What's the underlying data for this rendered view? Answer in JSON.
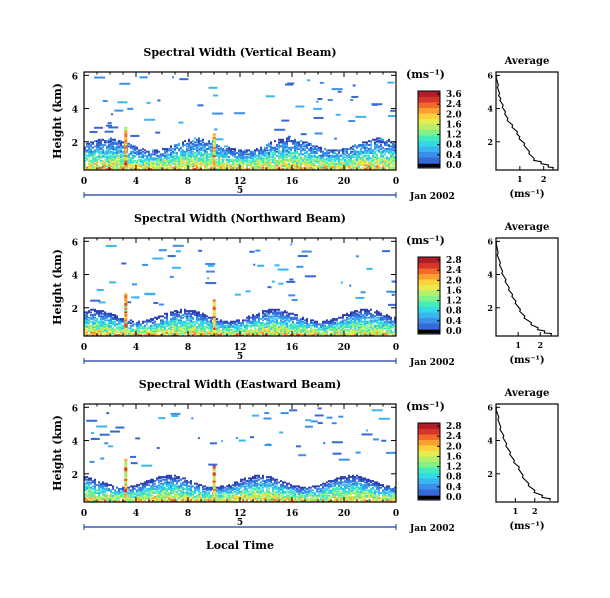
{
  "colors": {
    "colorbar": [
      "#2f3fb4",
      "#3569d6",
      "#3a8fea",
      "#39b5f0",
      "#33d9e6",
      "#43ecb8",
      "#7ff28a",
      "#b6f06a",
      "#e4ec50",
      "#fbd23c",
      "#fba030",
      "#f26a2a",
      "#d8352a",
      "#b01e28"
    ],
    "frame": "#000000",
    "time_axis": "#1e3aa6"
  },
  "chart_data": [
    {
      "type": "heatmap",
      "title": "Spectral Width (Vertical Beam)",
      "ylabel": "Height (km)",
      "y_ticks": [
        "2",
        "4",
        "6"
      ],
      "x_ticks": [
        "0",
        "4",
        "8",
        "12",
        "16",
        "20",
        "0"
      ],
      "xlim": [
        0,
        24
      ],
      "ylim": [
        0.3,
        6.2
      ],
      "colorbar": {
        "unit": "(ms⁻¹)",
        "ticks": [
          "3.6",
          "2.4",
          "2.0",
          "1.6",
          "1.2",
          "0.8",
          "0.4",
          "0.0"
        ],
        "range": [
          0,
          3.6
        ]
      },
      "date_label": "Jan 2002",
      "day_ticks": [
        "5"
      ],
      "average": {
        "title": "Average",
        "xlabel": "(ms⁻¹)",
        "x_ticks": [
          "1",
          "2"
        ],
        "y_ticks": [
          "2",
          "4",
          "6"
        ],
        "xlim": [
          0,
          2.6
        ],
        "ylim": [
          0.3,
          6.2
        ],
        "profile": [
          [
            0.05,
            6.0
          ],
          [
            0.1,
            5.4
          ],
          [
            0.15,
            4.9
          ],
          [
            0.2,
            4.6
          ],
          [
            0.3,
            4.2
          ],
          [
            0.4,
            3.8
          ],
          [
            0.5,
            3.4
          ],
          [
            0.7,
            3.0
          ],
          [
            0.9,
            2.6
          ],
          [
            1.0,
            2.3
          ],
          [
            1.2,
            1.9
          ],
          [
            1.4,
            1.4
          ],
          [
            1.6,
            1.0
          ],
          [
            1.9,
            0.8
          ],
          [
            2.2,
            0.6
          ],
          [
            2.4,
            0.45
          ]
        ]
      }
    },
    {
      "type": "heatmap",
      "title": "Spectral Width (Northward Beam)",
      "ylabel": "Height (km)",
      "y_ticks": [
        "2",
        "4",
        "6"
      ],
      "x_ticks": [
        "0",
        "4",
        "8",
        "12",
        "16",
        "20",
        "0"
      ],
      "xlim": [
        0,
        24
      ],
      "ylim": [
        0.3,
        6.2
      ],
      "colorbar": {
        "unit": "(ms⁻¹)",
        "ticks": [
          "2.8",
          "2.4",
          "2.0",
          "1.6",
          "1.2",
          "0.8",
          "0.4",
          "0.0"
        ],
        "range": [
          0,
          2.8
        ]
      },
      "date_label": "Jan 2002",
      "day_ticks": [
        "5"
      ],
      "average": {
        "title": "Average",
        "xlabel": "(ms⁻¹)",
        "x_ticks": [
          "1",
          "2"
        ],
        "y_ticks": [
          "2",
          "4",
          "6"
        ],
        "xlim": [
          0,
          2.8
        ],
        "ylim": [
          0.3,
          6.2
        ],
        "profile": [
          [
            0.05,
            6.0
          ],
          [
            0.1,
            5.3
          ],
          [
            0.2,
            4.7
          ],
          [
            0.3,
            4.2
          ],
          [
            0.45,
            3.7
          ],
          [
            0.6,
            3.2
          ],
          [
            0.75,
            2.8
          ],
          [
            0.9,
            2.4
          ],
          [
            1.1,
            1.9
          ],
          [
            1.3,
            1.5
          ],
          [
            1.6,
            1.1
          ],
          [
            1.9,
            0.8
          ],
          [
            2.2,
            0.6
          ],
          [
            2.5,
            0.45
          ]
        ]
      }
    },
    {
      "type": "heatmap",
      "title": "Spectral Width (Eastward Beam)",
      "ylabel": "Height (km)",
      "y_ticks": [
        "2",
        "4",
        "6"
      ],
      "x_ticks": [
        "0",
        "4",
        "8",
        "12",
        "16",
        "20",
        "0"
      ],
      "xlim": [
        0,
        24
      ],
      "ylim": [
        0.3,
        6.2
      ],
      "colorbar": {
        "unit": "(ms⁻¹)",
        "ticks": [
          "2.8",
          "2.4",
          "2.0",
          "1.6",
          "1.2",
          "0.8",
          "0.4",
          "0.0"
        ],
        "range": [
          0,
          2.8
        ]
      },
      "date_label": "Jan 2002",
      "day_ticks": [
        "5"
      ],
      "xlabel": "Local Time",
      "average": {
        "title": "Average",
        "xlabel": "(ms⁻¹)",
        "x_ticks": [
          "1",
          "2"
        ],
        "y_ticks": [
          "2",
          "4",
          "6"
        ],
        "xlim": [
          0,
          3.2
        ],
        "ylim": [
          0.3,
          6.2
        ],
        "profile": [
          [
            0.05,
            6.0
          ],
          [
            0.15,
            5.4
          ],
          [
            0.25,
            4.8
          ],
          [
            0.4,
            4.3
          ],
          [
            0.55,
            3.8
          ],
          [
            0.75,
            3.3
          ],
          [
            0.95,
            2.8
          ],
          [
            1.2,
            2.4
          ],
          [
            1.4,
            1.9
          ],
          [
            1.7,
            1.4
          ],
          [
            2.0,
            1.0
          ],
          [
            2.4,
            0.7
          ],
          [
            2.8,
            0.5
          ]
        ]
      }
    }
  ]
}
